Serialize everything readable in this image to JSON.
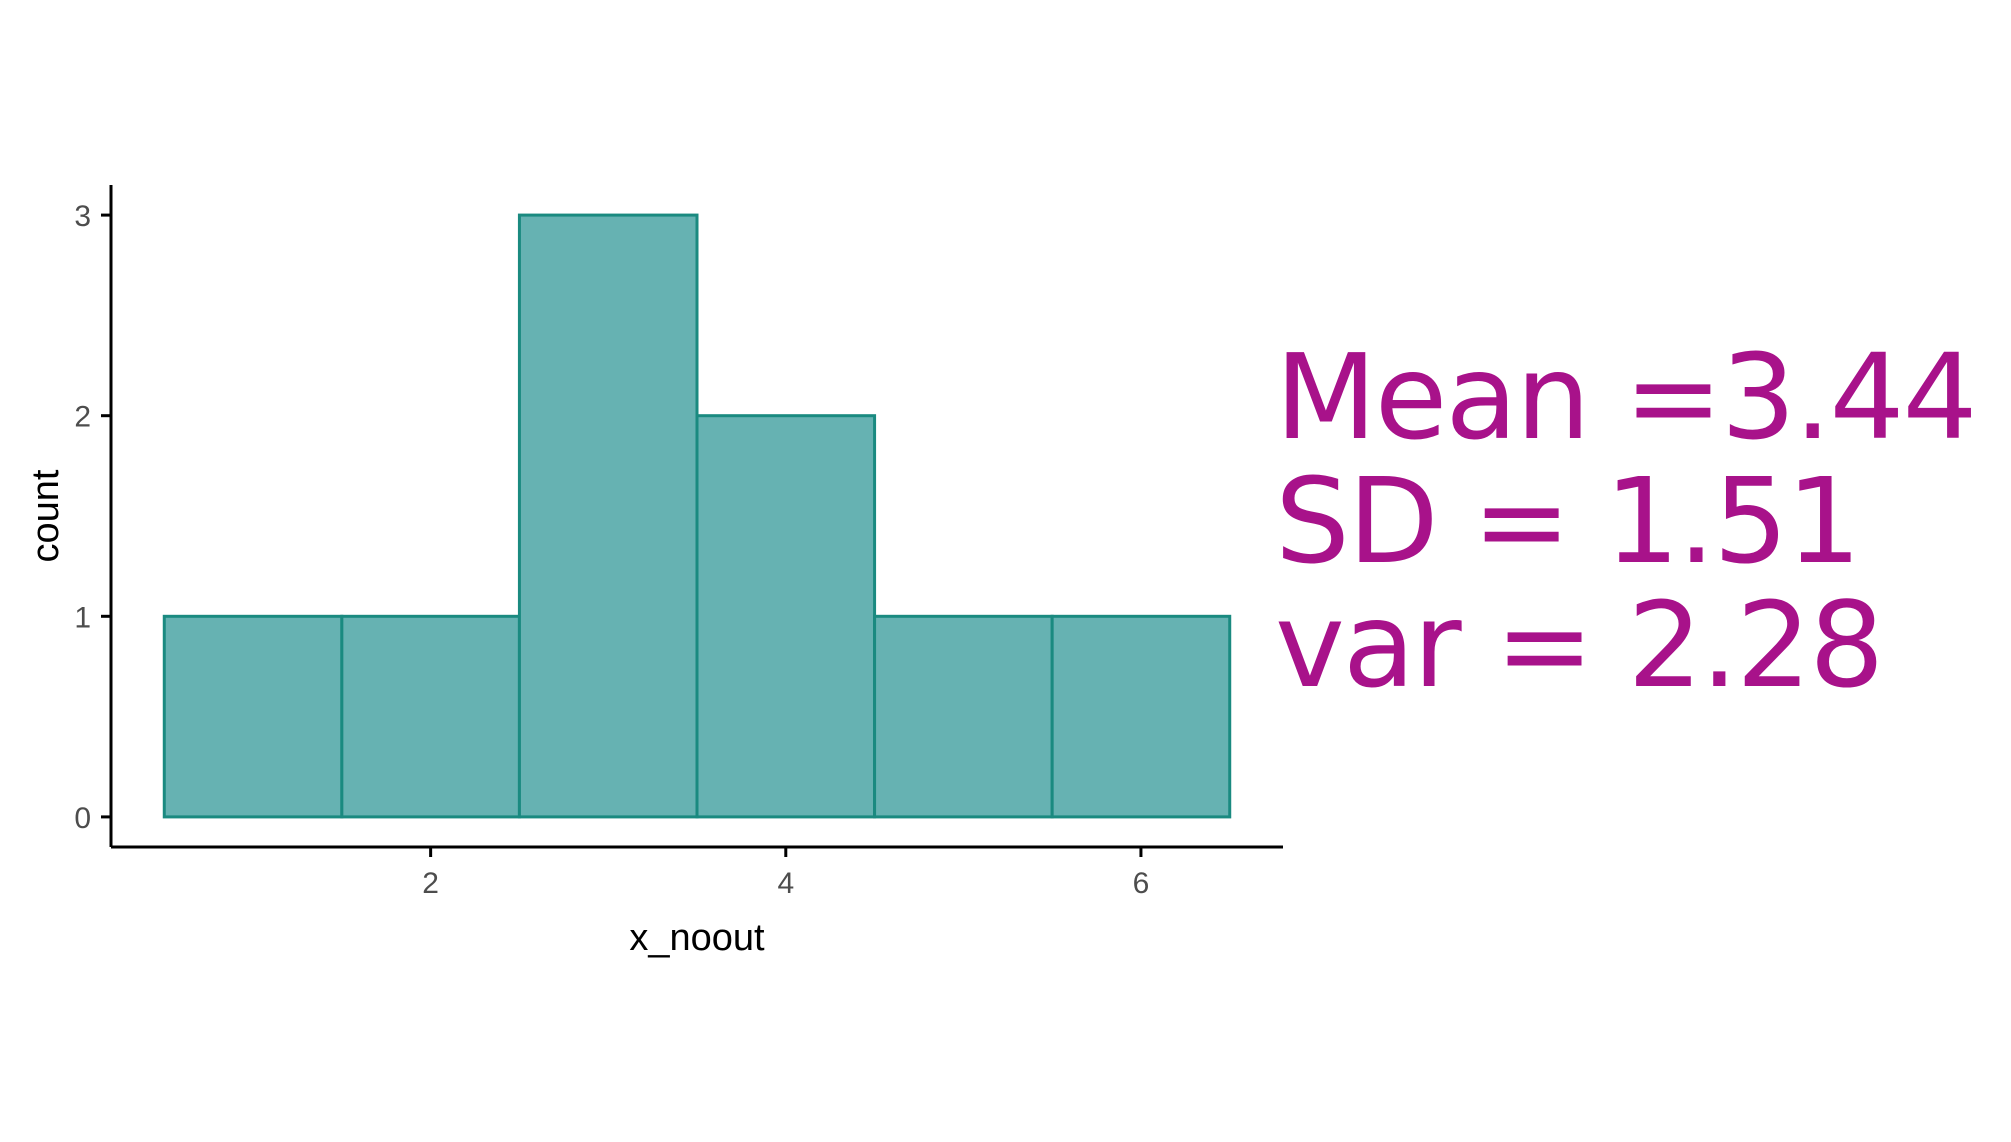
{
  "colors": {
    "bar_fill": "#66b2b2",
    "bar_stroke": "#1a8a80",
    "annotation": "#a8128a",
    "axis": "#000000",
    "tick_text": "#4d4d4d"
  },
  "chart_data": {
    "type": "bar",
    "subtype": "histogram",
    "title": "",
    "xlabel": "x_noout",
    "ylabel": "count",
    "bins": [
      {
        "x_start": 0.5,
        "x_end": 1.5,
        "count": 1
      },
      {
        "x_start": 1.5,
        "x_end": 2.5,
        "count": 1
      },
      {
        "x_start": 2.5,
        "x_end": 3.5,
        "count": 3
      },
      {
        "x_start": 3.5,
        "x_end": 4.5,
        "count": 2
      },
      {
        "x_start": 4.5,
        "x_end": 5.5,
        "count": 1
      },
      {
        "x_start": 5.5,
        "x_end": 6.5,
        "count": 1
      }
    ],
    "xlim": [
      0.2,
      6.8
    ],
    "ylim": [
      -0.15,
      3.15
    ],
    "x_ticks": [
      2,
      4,
      6
    ],
    "y_ticks": [
      0,
      1,
      2,
      3
    ],
    "grid": false,
    "legend": "none"
  },
  "annotations": {
    "mean": "Mean =3.44",
    "sd": "SD = 1.51",
    "var": "var = 2.28"
  }
}
